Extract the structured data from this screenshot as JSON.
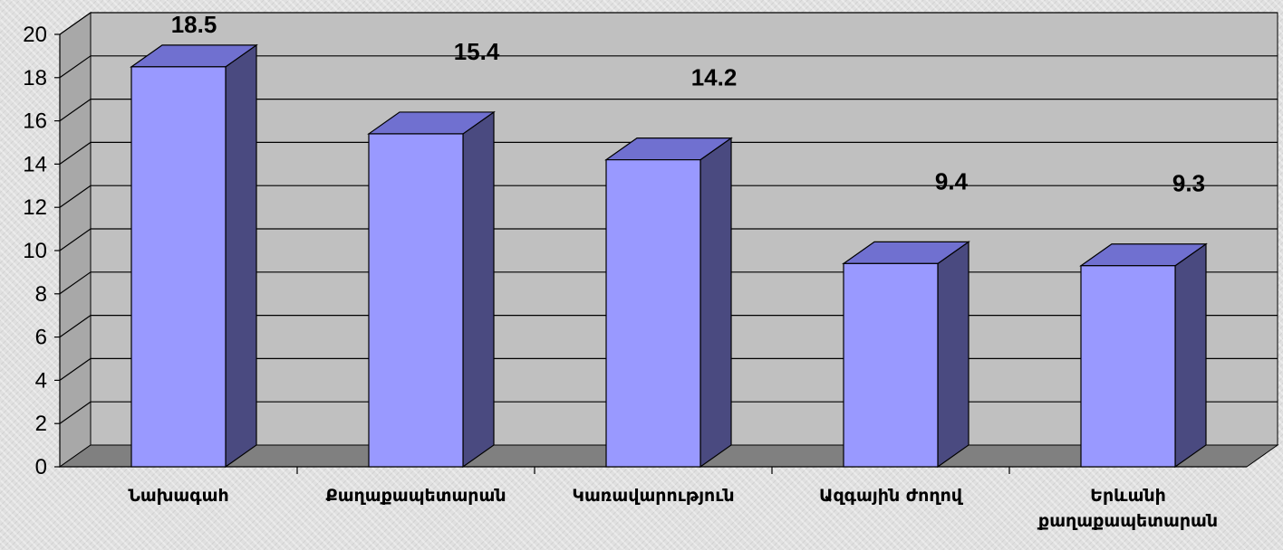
{
  "chart_data": {
    "type": "bar",
    "categories": [
      "Նախագահ",
      "Քաղաքապետարան",
      "Կառավարություն",
      "Ազգային ժողով",
      "Երևանի քաղաքապետարան"
    ],
    "category_lines": [
      [
        "Նախագահ"
      ],
      [
        "Քաղաքապետարան"
      ],
      [
        "Կառավարություն"
      ],
      [
        "Ազգային ժողով"
      ],
      [
        "Երևանի",
        "քաղաքապետարան"
      ]
    ],
    "values": [
      18.5,
      15.4,
      14.2,
      9.4,
      9.3
    ],
    "data_labels": [
      "18.5",
      "15.4",
      "14.2",
      "9.4",
      "9.3"
    ],
    "yticks": [
      "0",
      "2",
      "4",
      "6",
      "8",
      "10",
      "12",
      "14",
      "16",
      "18",
      "20"
    ],
    "ylim": [
      0,
      20
    ],
    "grid": true,
    "legend": "none",
    "three_d": true,
    "colors": {
      "bar_front": "#9999ff",
      "bar_top": "#7070d0",
      "bar_side": "#4a4a80",
      "wall": "#c0c0c0",
      "floor": "#808080",
      "gridline": "#000000"
    }
  }
}
